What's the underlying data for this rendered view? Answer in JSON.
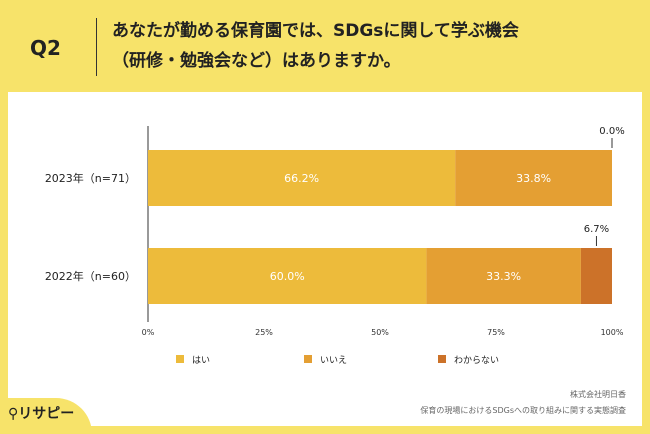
{
  "header": {
    "q_label": "Q2",
    "question_line1": "あなたが勤める保育園では、SDGsに関して学ぶ機会",
    "question_line2": "（研修・勉強会など）はありますか。"
  },
  "source": {
    "company": "株式会社明日香",
    "survey": "保育の現場におけるSDGsへの取り組みに関する実態調査"
  },
  "logo": {
    "text": "リサピー"
  },
  "colors": {
    "background": "#f7e36a",
    "yes": "#edbb3b",
    "no": "#e49f33",
    "unknown": "#cc7229"
  },
  "chart_data": {
    "type": "bar",
    "orientation": "horizontal",
    "stacked": true,
    "categories": [
      "2023年（n=71）",
      "2022年（n=60）"
    ],
    "series": [
      {
        "name": "はい",
        "values": [
          66.2,
          60.0
        ],
        "labels": [
          "66.2%",
          "60.0%"
        ]
      },
      {
        "name": "いいえ",
        "values": [
          33.8,
          33.3
        ],
        "labels": [
          "33.8%",
          "33.3%"
        ]
      },
      {
        "name": "わからない",
        "values": [
          0.0,
          6.7
        ],
        "labels": [
          "0.0%",
          "6.7%"
        ]
      }
    ],
    "xlim": [
      0,
      100
    ],
    "xticks": [
      "0%",
      "25%",
      "50%",
      "75%",
      "100%"
    ],
    "legend_position": "bottom"
  }
}
